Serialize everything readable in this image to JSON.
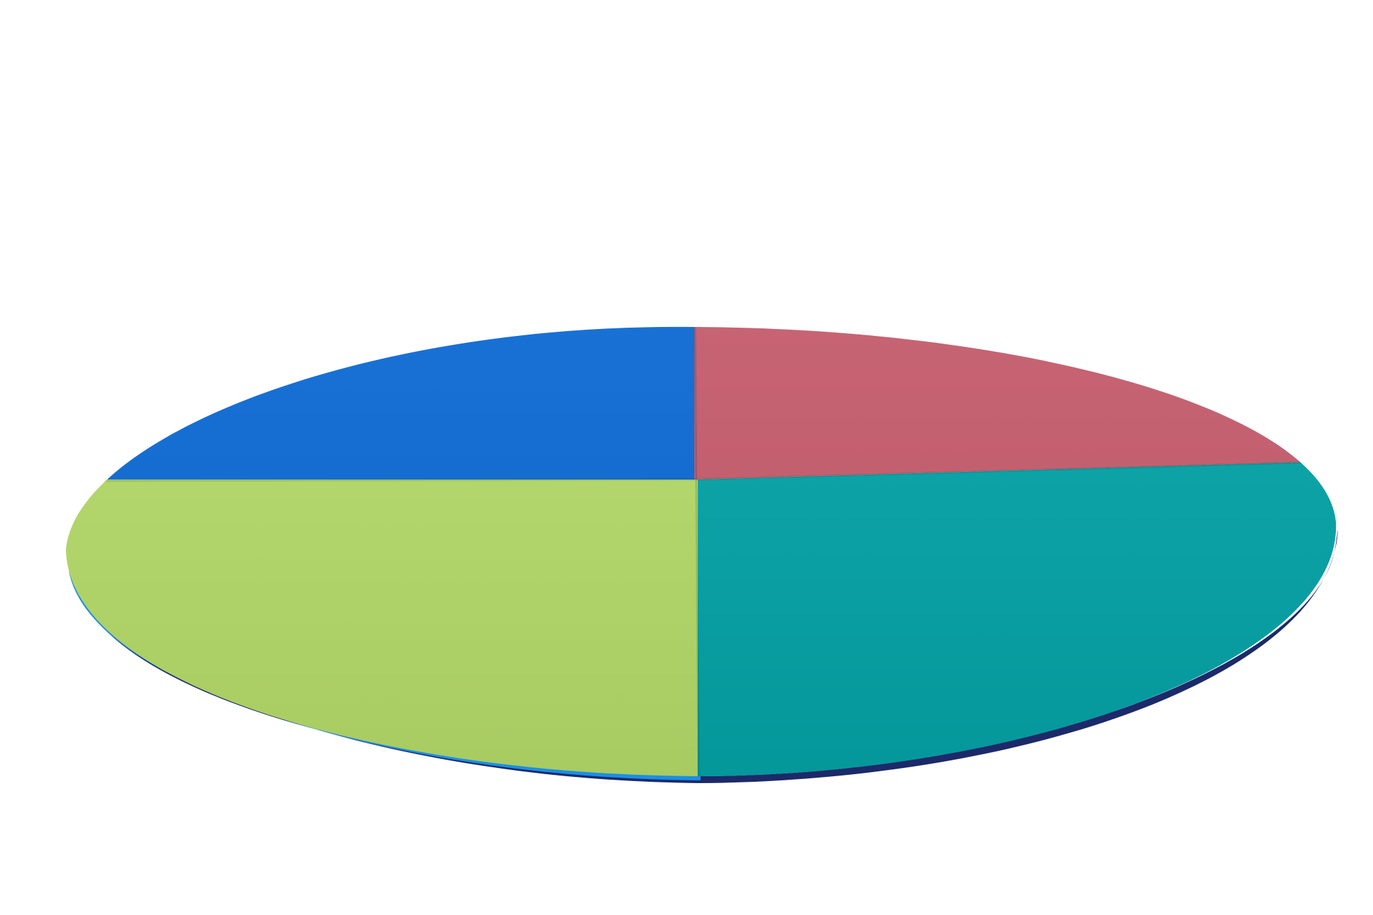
{
  "image": {
    "subject": "round-mat",
    "background_color": "#ffffff",
    "quadrant_colors": {
      "top_left": "#0b69d4",
      "top_right": "#c55b6c",
      "bottom_left": "#b4da68",
      "bottom_right": "#02a2a6"
    },
    "edge_colors": {
      "left_piping": "#1a8fe6",
      "right_zipper": "#1c2a6a"
    }
  }
}
